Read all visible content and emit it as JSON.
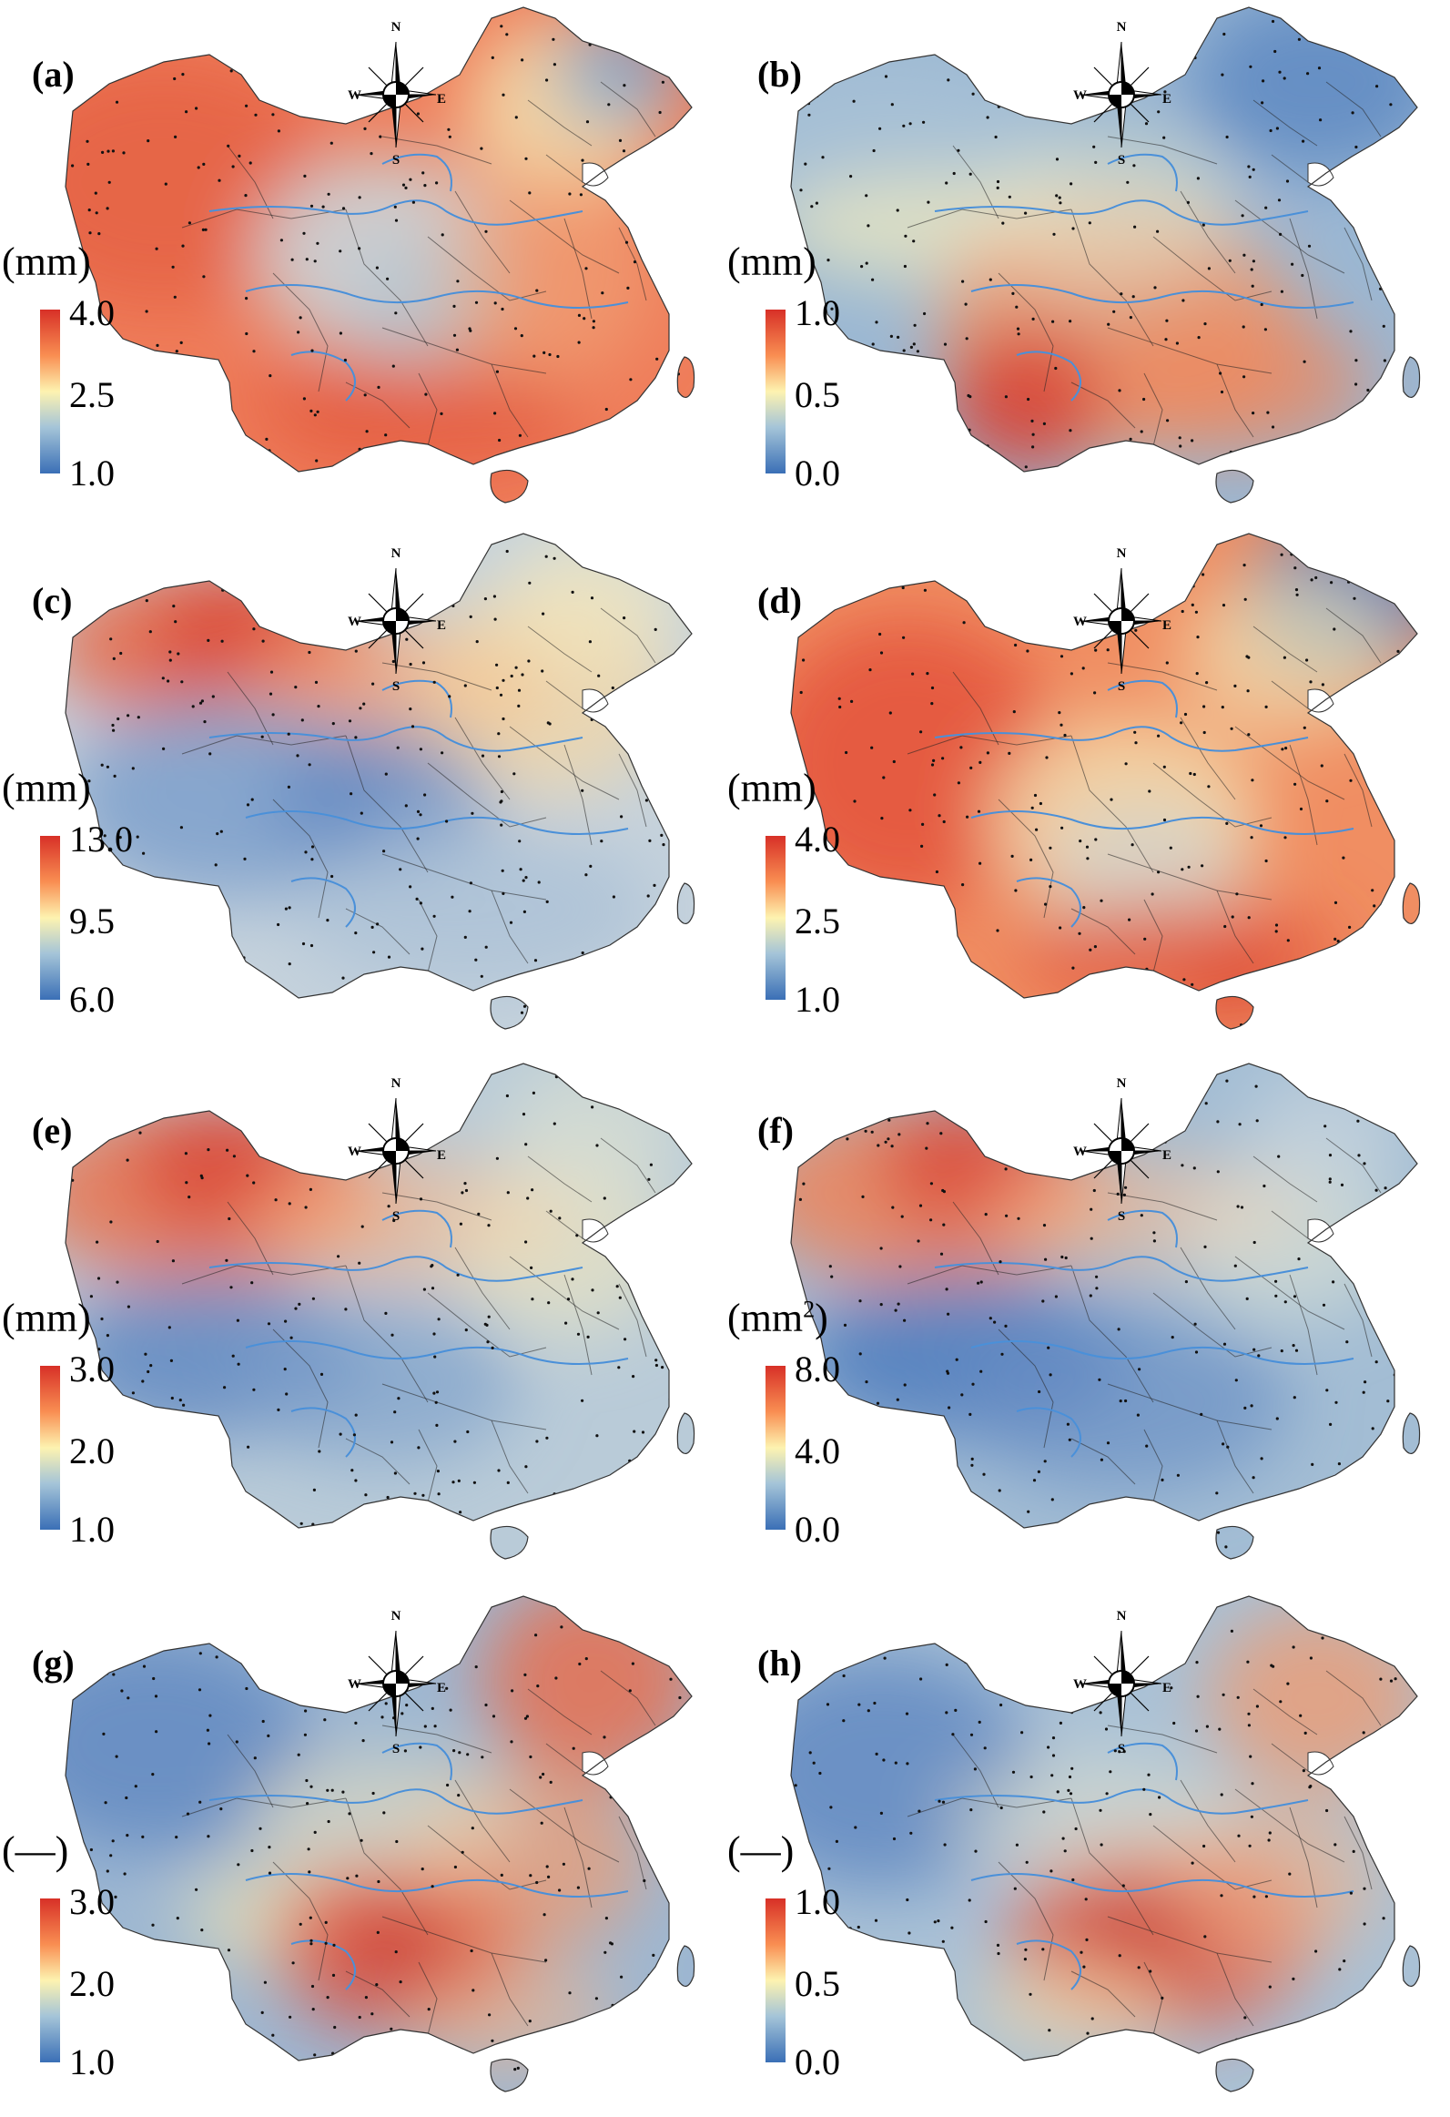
{
  "compass": {
    "n": "N",
    "s": "S",
    "w": "W",
    "e": "E"
  },
  "panels": [
    {
      "label": "(a)",
      "unit": "(mm)",
      "unit_sup": "",
      "ticks": [
        "4.0",
        "2.5",
        "1.0"
      ],
      "pattern": "a"
    },
    {
      "label": "(b)",
      "unit": "(mm)",
      "unit_sup": "",
      "ticks": [
        "1.0",
        "0.5",
        "0.0"
      ],
      "pattern": "b"
    },
    {
      "label": "(c)",
      "unit": "(mm)",
      "unit_sup": "",
      "ticks": [
        "13.0",
        "9.5",
        "6.0"
      ],
      "pattern": "c"
    },
    {
      "label": "(d)",
      "unit": "(mm)",
      "unit_sup": "",
      "ticks": [
        "4.0",
        "2.5",
        "1.0"
      ],
      "pattern": "d"
    },
    {
      "label": "(e)",
      "unit": "(mm)",
      "unit_sup": "",
      "ticks": [
        "3.0",
        "2.0",
        "1.0"
      ],
      "pattern": "e"
    },
    {
      "label": "(f)",
      "unit": "(mm",
      "unit_sup": "2",
      "unit_close": ")",
      "ticks": [
        "8.0",
        "4.0",
        "0.0"
      ],
      "pattern": "f"
    },
    {
      "label": "(g)",
      "unit": "(—)",
      "unit_sup": "",
      "ticks": [
        "3.0",
        "2.0",
        "1.0"
      ],
      "pattern": "g"
    },
    {
      "label": "(h)",
      "unit": "(—)",
      "unit_sup": "",
      "ticks": [
        "1.0",
        "0.5",
        "0.0"
      ],
      "pattern": "h"
    }
  ],
  "colors": {
    "high": "#d73027",
    "mid_high": "#f98e52",
    "mid": "#fdf3b0",
    "mid_low": "#a4c4d8",
    "low": "#3a6fb6",
    "river": "#4a90d9",
    "border": "#222222"
  }
}
